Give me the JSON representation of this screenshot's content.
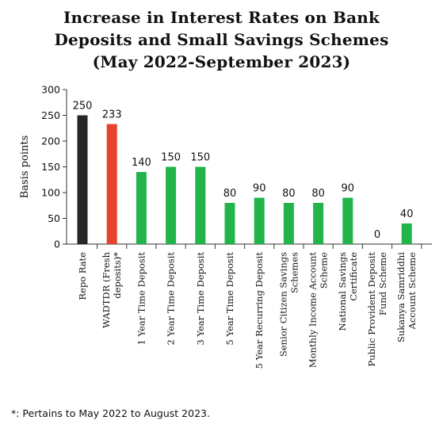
{
  "chart_data": {
    "type": "bar",
    "title_lines": [
      "Increase in Interest Rates on Bank",
      "Deposits and Small Savings Schemes",
      "(May 2022-September 2023)"
    ],
    "ylabel": "Basis points",
    "ylim": [
      0,
      300
    ],
    "yticks": [
      0,
      50,
      100,
      150,
      200,
      250,
      300
    ],
    "categories": [
      "Repo Rate",
      "WADTDR (Fresh deposits)*",
      "1 Year Time Deposit",
      "2 Year Time Deposit",
      "3 Year Time Deposit",
      "5 Year Time Deposit",
      "5 Year Recurring Deposit",
      "Senior Citizen Savings Schemes",
      "Monthly Income Account Scheme",
      "National Savings Certificate",
      "Public Provident Deposit Fund Scheme",
      "Sukanya Samriddhi Account Scheme"
    ],
    "category_label_lines": [
      [
        "Repo Rate"
      ],
      [
        "WADTDR (Fresh",
        "deposits)*"
      ],
      [
        "1 Year Time Deposit"
      ],
      [
        "2 Year Time Deposit"
      ],
      [
        "3 Year Time Deposit"
      ],
      [
        "5 Year Time Deposit"
      ],
      [
        "5 Year Recurring Deposit"
      ],
      [
        "Senior Citizen Savings",
        "Schemes"
      ],
      [
        "Monthly Income Account",
        "Scheme"
      ],
      [
        "National Savings",
        "Certificate"
      ],
      [
        "Public Provident Deposit",
        "Fund Scheme"
      ],
      [
        "Sukanya Samriddhi",
        "Account Scheme"
      ]
    ],
    "values": [
      250,
      233,
      140,
      150,
      150,
      80,
      90,
      80,
      80,
      90,
      0,
      40
    ],
    "bar_colors": [
      "#262626",
      "#e8412c",
      "#22b34b",
      "#22b34b",
      "#22b34b",
      "#22b34b",
      "#22b34b",
      "#22b34b",
      "#22b34b",
      "#22b34b",
      "#22b34b",
      "#22b34b"
    ],
    "grid": false,
    "legend": "none"
  },
  "footnote": "*: Pertains to May 2022 to August 2023."
}
